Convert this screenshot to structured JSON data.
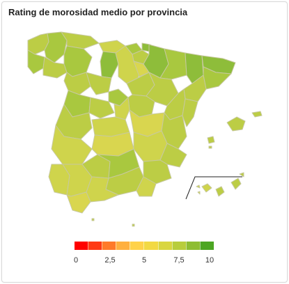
{
  "title": "Rating de morosidad medio por provincia",
  "legend": {
    "ticks": [
      "0",
      "2,5",
      "5",
      "7,5",
      "10"
    ],
    "colors": [
      "#ff0000",
      "#ff3a14",
      "#ff7a2a",
      "#ffb040",
      "#ffd24a",
      "#f2d944",
      "#d9d641",
      "#b8cd3c",
      "#8ebd32",
      "#4ca623"
    ]
  },
  "map": {
    "colors": {
      "high": "#8ebd3a",
      "mid_high": "#a9c83f",
      "mid": "#bccd45",
      "mid_low": "#cfd44c",
      "low": "#d9d64f",
      "border": "#c7c9a0"
    }
  }
}
